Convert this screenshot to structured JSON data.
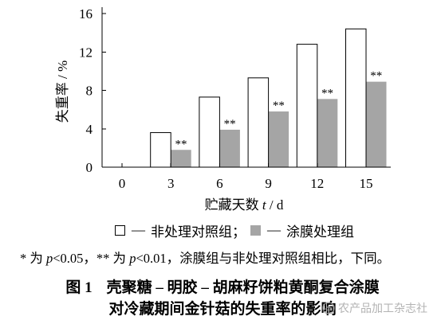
{
  "chart_data": {
    "type": "bar",
    "xlabel": "贮藏天数 t / d",
    "ylabel": "失重率 / %",
    "categories": [
      "0",
      "3",
      "6",
      "9",
      "12",
      "15"
    ],
    "yticks": [
      "0",
      "4",
      "8",
      "12",
      "16"
    ],
    "ylim": [
      0,
      16
    ],
    "grid": false,
    "legend_position": "bottom",
    "series": [
      {
        "name": "非处理对照组",
        "values": [
          0,
          3.6,
          7.3,
          9.3,
          12.8,
          14.4
        ],
        "color": "#ffffff",
        "edge_color": "#000000"
      },
      {
        "name": "涂膜处理组",
        "values": [
          0,
          1.8,
          3.9,
          5.8,
          7.1,
          8.9
        ],
        "color": "#a5a5a5",
        "labels": [
          null,
          "**",
          "**",
          "**",
          "**",
          "**"
        ]
      }
    ]
  },
  "legend": {
    "dash": "—",
    "separator": "；"
  },
  "footnote": "* 为 p<0.05，** 为 p<0.01，涂膜组与非处理对照组相比，下同。",
  "caption": {
    "label": "图 1",
    "line1": "壳聚糖 – 明胶 – 胡麻籽饼粕黄酮复合涂膜",
    "line2": "对冷藏期间金针菇的失重率的影响"
  },
  "watermark": "农产品加工杂志社"
}
